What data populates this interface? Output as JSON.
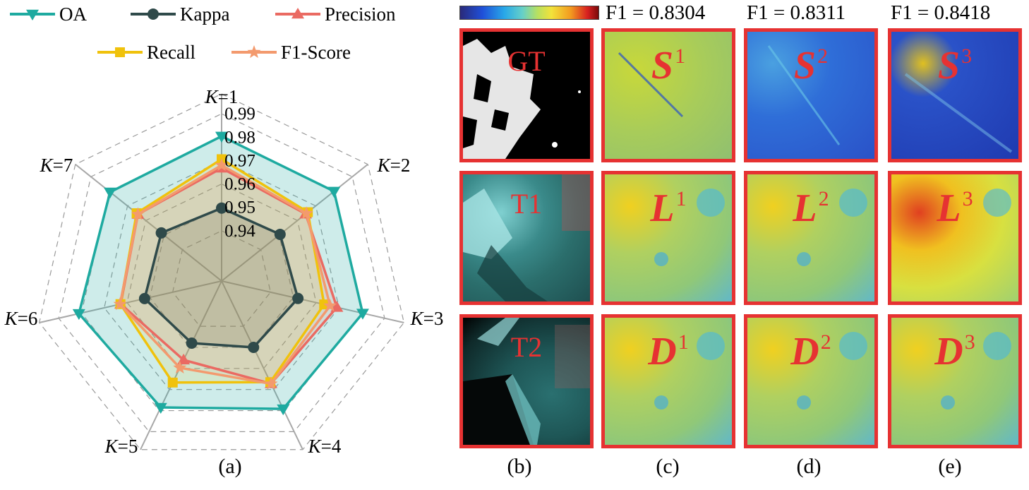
{
  "radar": {
    "legend": [
      {
        "name": "OA",
        "marker": "triangle-down",
        "color": "#1eaaa0"
      },
      {
        "name": "Kappa",
        "marker": "circle",
        "color": "#2f4a4a"
      },
      {
        "name": "Precision",
        "marker": "triangle-up",
        "color": "#ea6a62"
      },
      {
        "name": "Recall",
        "marker": "square",
        "color": "#f0c20c"
      },
      {
        "name": "F1-Score",
        "marker": "star",
        "color": "#f39a6e"
      }
    ],
    "caption": "(a)"
  },
  "chart_data": {
    "type": "radar",
    "categories": [
      "K=1",
      "K=2",
      "K=3",
      "K=4",
      "K=5",
      "K=6",
      "K=7"
    ],
    "category_labels": [
      {
        "italic": "K",
        "rest": "=1"
      },
      {
        "italic": "K",
        "rest": "=2"
      },
      {
        "italic": "K",
        "rest": "=3"
      },
      {
        "italic": "K",
        "rest": "=4"
      },
      {
        "italic": "K",
        "rest": "=5"
      },
      {
        "italic": "K",
        "rest": "=6"
      },
      {
        "italic": "K",
        "rest": "=7"
      }
    ],
    "radial_ticks": [
      "0.99",
      "0.98",
      "0.97",
      "0.96",
      "0.95",
      "0.94"
    ],
    "radial_tick_values": [
      0.99,
      0.98,
      0.97,
      0.96,
      0.95,
      0.94
    ],
    "rlim": [
      0.93,
      1.0
    ],
    "grid": true,
    "series": [
      {
        "name": "OA",
        "values": [
          0.9804,
          0.98,
          0.9804,
          0.9792,
          0.9785,
          0.9811,
          0.9795
        ]
      },
      {
        "name": "Kappa",
        "values": [
          0.9497,
          0.9505,
          0.952,
          0.95,
          0.948,
          0.9523,
          0.9515
        ]
      },
      {
        "name": "Precision",
        "values": [
          0.9668,
          0.9645,
          0.9691,
          0.9672,
          0.956,
          0.9628,
          0.9643
        ]
      },
      {
        "name": "Recall",
        "values": [
          0.9706,
          0.9657,
          0.9635,
          0.9665,
          0.9667,
          0.9629,
          0.965
        ]
      },
      {
        "name": "F1-Score",
        "values": [
          0.968,
          0.9649,
          0.9661,
          0.9673,
          0.9597,
          0.9631,
          0.9643
        ]
      }
    ]
  },
  "maps": {
    "f1_labels": [
      "F1 = 0.8304",
      "F1 = 0.8311",
      "F1 = 0.8418"
    ],
    "row_labels": [
      "GT",
      "T1",
      "T2"
    ],
    "symbols": [
      {
        "letter": "S",
        "sup": "1"
      },
      {
        "letter": "S",
        "sup": "2"
      },
      {
        "letter": "S",
        "sup": "3"
      },
      {
        "letter": "L",
        "sup": "1"
      },
      {
        "letter": "L",
        "sup": "2"
      },
      {
        "letter": "L",
        "sup": "3"
      },
      {
        "letter": "D",
        "sup": "1"
      },
      {
        "letter": "D",
        "sup": "2"
      },
      {
        "letter": "D",
        "sup": "3"
      }
    ],
    "captions": [
      "(b)",
      "(c)",
      "(d)",
      "(e)"
    ]
  }
}
